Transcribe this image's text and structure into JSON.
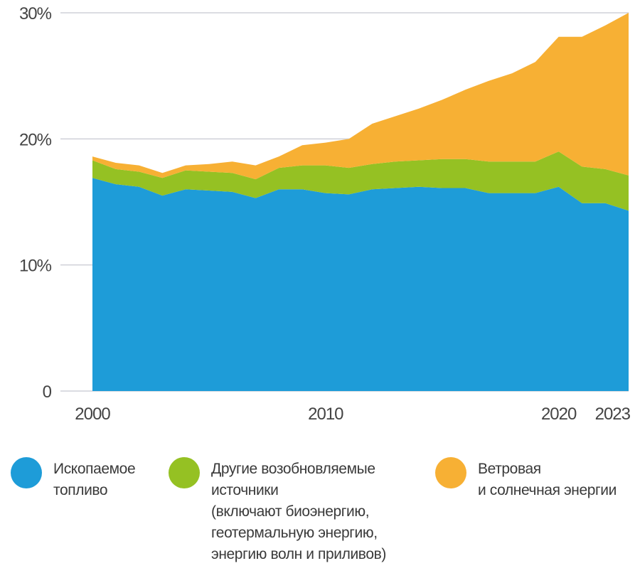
{
  "chart_data": {
    "type": "area",
    "stacked": true,
    "x": [
      2000,
      2001,
      2002,
      2003,
      2004,
      2005,
      2006,
      2007,
      2008,
      2009,
      2010,
      2011,
      2012,
      2013,
      2014,
      2015,
      2016,
      2017,
      2018,
      2019,
      2020,
      2021,
      2022,
      2023
    ],
    "xticks": [
      "2000",
      "2010",
      "2020",
      "2023"
    ],
    "xtick_values": [
      2000,
      2010,
      2020,
      2023
    ],
    "yticks": [
      "0",
      "10%",
      "20%",
      "30%"
    ],
    "ytick_values": [
      0,
      10,
      20,
      30
    ],
    "ylim": [
      0,
      30
    ],
    "grid": true,
    "legend_position": "bottom",
    "series": [
      {
        "name": "Ископаемое топливо",
        "legend_lines": [
          "Ископаемое",
          "топливо"
        ],
        "color": "#1e9cd8",
        "values": [
          16.9,
          16.4,
          16.2,
          15.5,
          16.0,
          15.9,
          15.8,
          15.3,
          16.0,
          16.0,
          15.7,
          15.6,
          16.0,
          16.1,
          16.2,
          16.1,
          16.1,
          15.7,
          15.7,
          15.7,
          16.2,
          14.9,
          14.9,
          14.3
        ]
      },
      {
        "name": "Другие возобновляемые источники (включают биоэнергию, геотермальную энергию, энергию волн и приливов)",
        "legend_lines": [
          "Другие возобновляемые",
          "источники",
          "(включают биоэнергию,",
          "геотермальную энергию,",
          "энергию волн и приливов)"
        ],
        "color": "#95c123",
        "values": [
          1.4,
          1.2,
          1.2,
          1.4,
          1.5,
          1.5,
          1.5,
          1.5,
          1.7,
          1.9,
          2.2,
          2.1,
          2.0,
          2.1,
          2.1,
          2.3,
          2.3,
          2.5,
          2.5,
          2.5,
          2.8,
          2.9,
          2.7,
          2.8
        ]
      },
      {
        "name": "Ветровая и солнечная энергии",
        "legend_lines": [
          "Ветровая",
          "и солнечная энергии"
        ],
        "color": "#f7b034",
        "values": [
          0.3,
          0.5,
          0.5,
          0.4,
          0.4,
          0.6,
          0.9,
          1.1,
          0.9,
          1.6,
          1.8,
          2.3,
          3.2,
          3.6,
          4.1,
          4.7,
          5.5,
          6.4,
          7.0,
          7.9,
          9.1,
          10.3,
          11.4,
          12.9
        ]
      }
    ]
  }
}
